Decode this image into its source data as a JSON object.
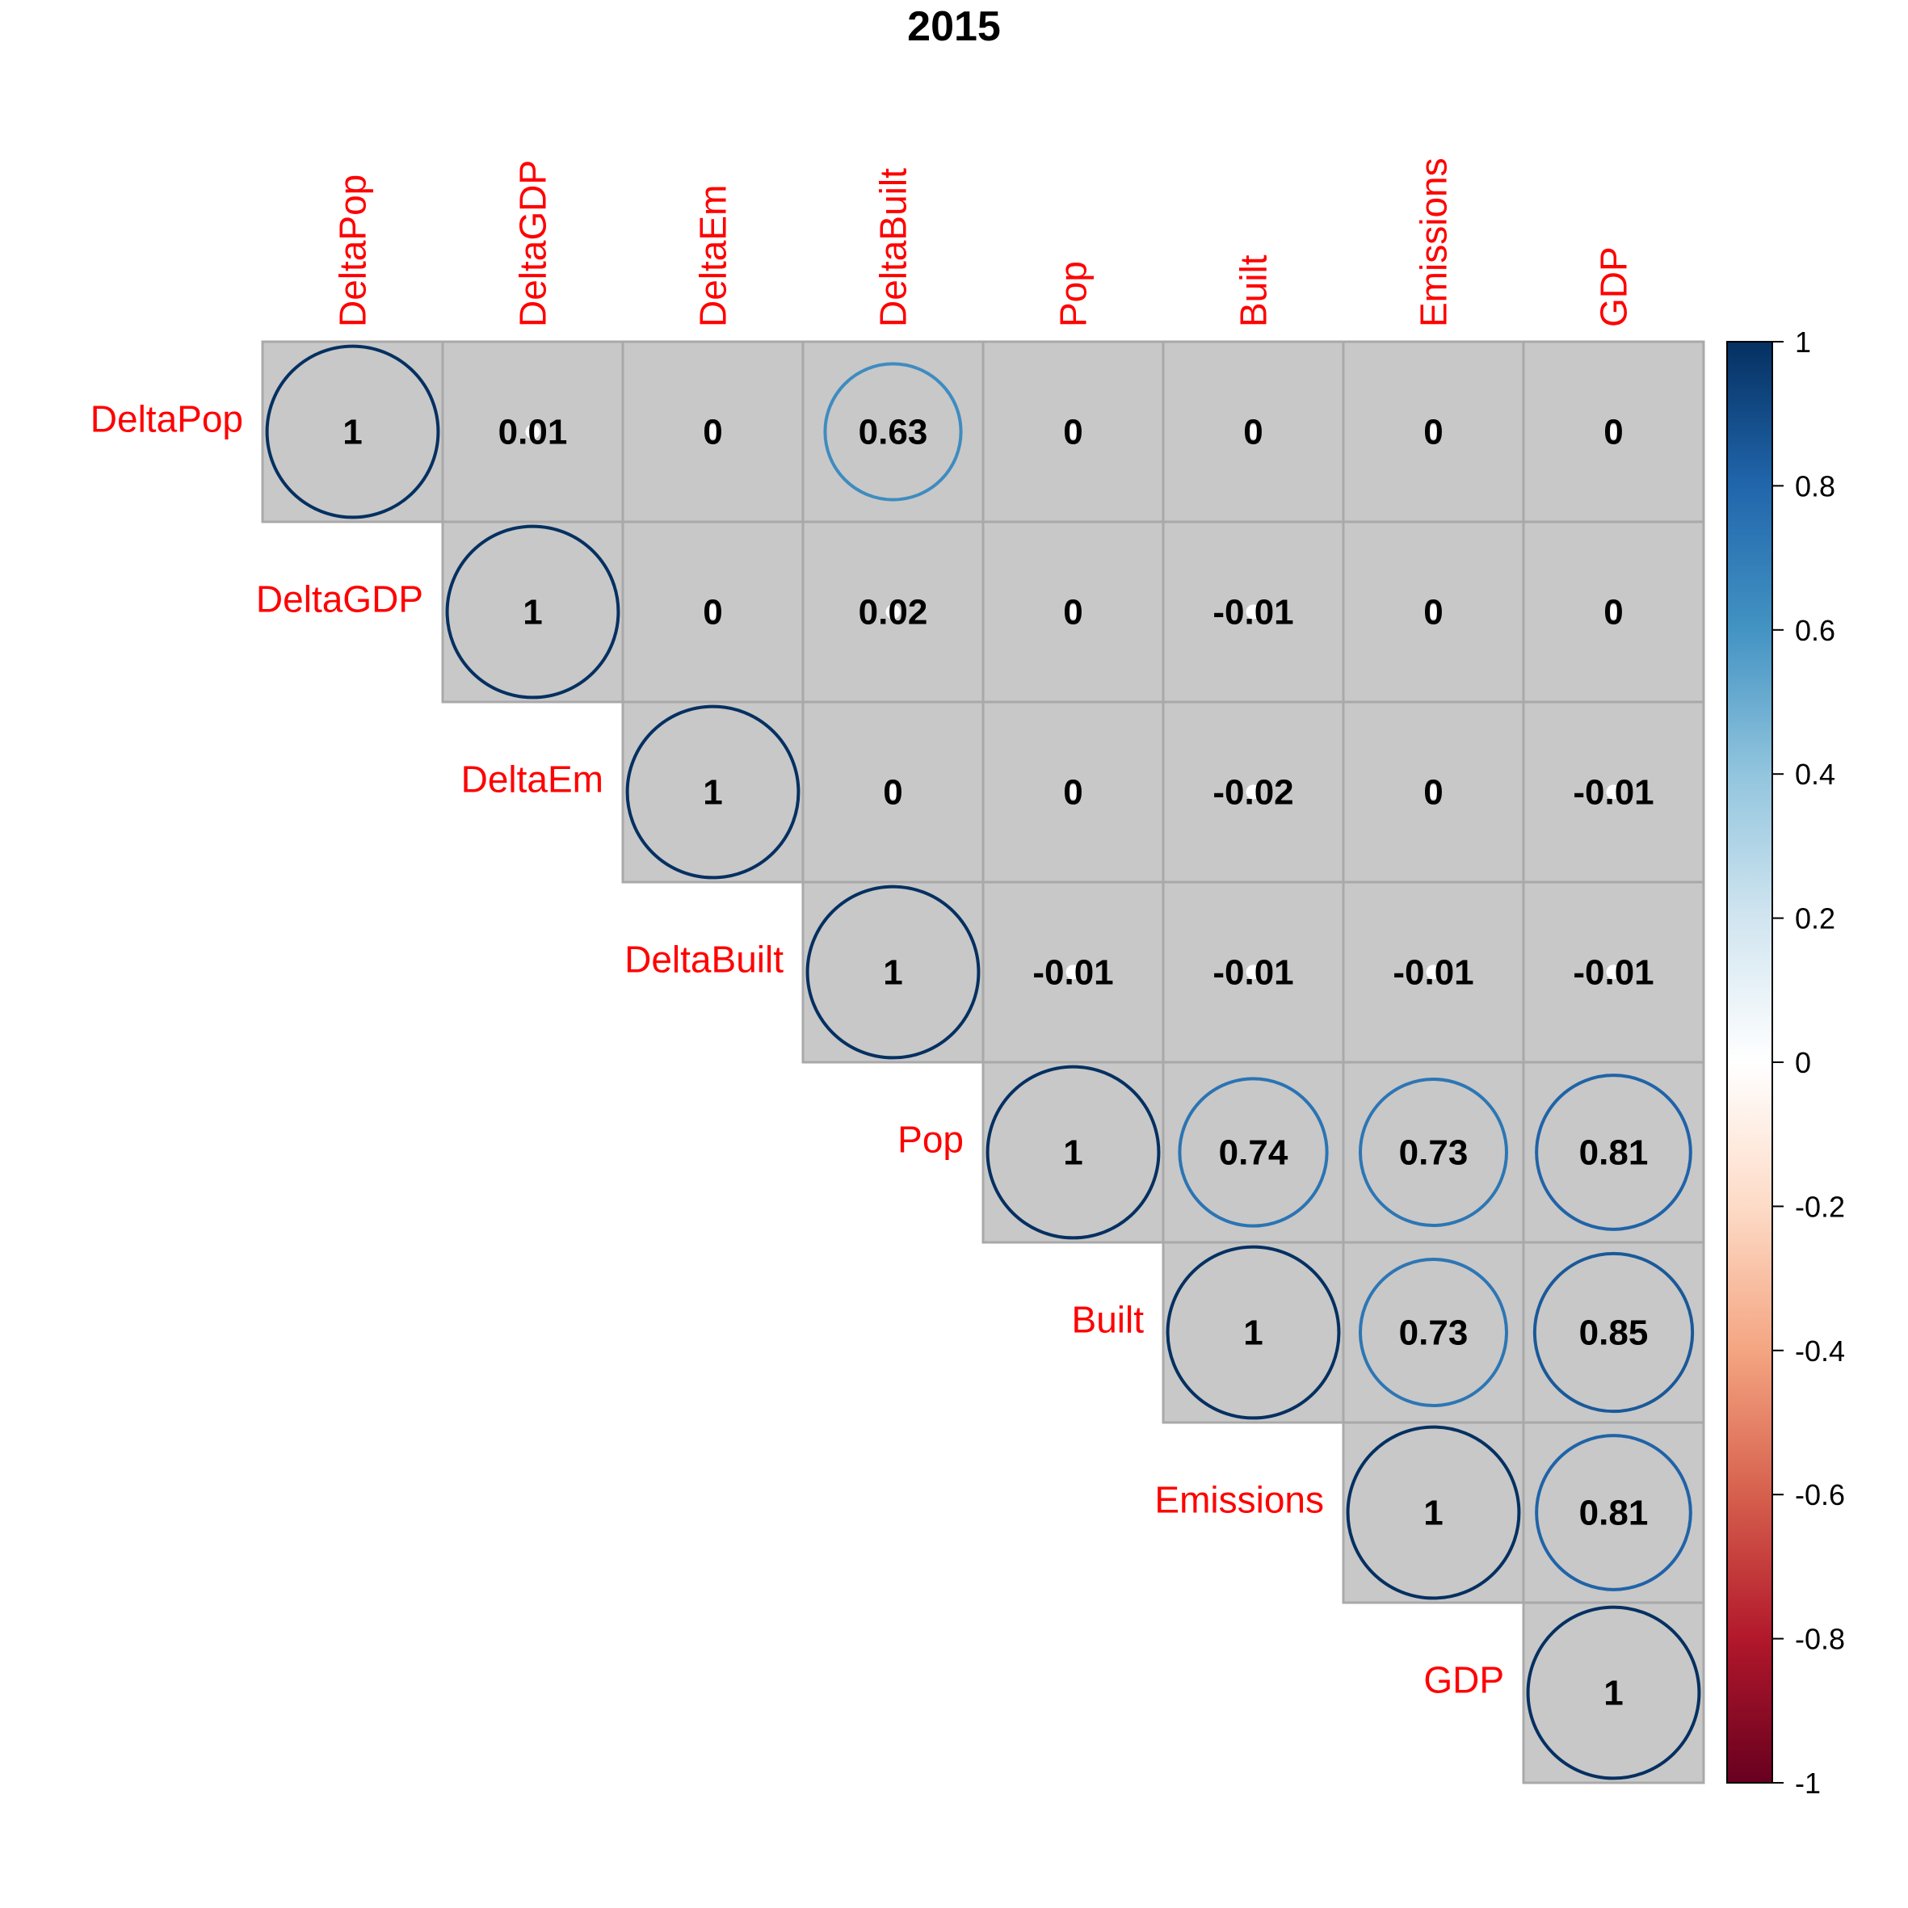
{
  "chart_data": {
    "type": "heatmap",
    "style": "circle correlation matrix, upper triangle",
    "title": "2015",
    "variables": [
      "DeltaPop",
      "DeltaGDP",
      "DeltaEm",
      "DeltaBuilt",
      "Pop",
      "Built",
      "Emissions",
      "GDP"
    ],
    "matrix": [
      [
        1,
        0.01,
        0,
        0.63,
        0,
        0,
        0,
        0
      ],
      [
        null,
        1,
        0,
        0.02,
        0,
        -0.01,
        0,
        0
      ],
      [
        null,
        null,
        1,
        0,
        0,
        -0.02,
        0,
        -0.01
      ],
      [
        null,
        null,
        null,
        1,
        -0.01,
        -0.01,
        -0.01,
        -0.01
      ],
      [
        null,
        null,
        null,
        null,
        1,
        0.74,
        0.73,
        0.81
      ],
      [
        null,
        null,
        null,
        null,
        null,
        1,
        0.73,
        0.85
      ],
      [
        null,
        null,
        null,
        null,
        null,
        null,
        1,
        0.81
      ],
      [
        null,
        null,
        null,
        null,
        null,
        null,
        null,
        1
      ]
    ],
    "value_labels": [
      [
        "1",
        "0.01",
        "0",
        "0.63",
        "0",
        "0",
        "0",
        "0"
      ],
      [
        "",
        "1",
        "0",
        "0.02",
        "0",
        "-0.01",
        "0",
        "0"
      ],
      [
        "",
        "",
        "1",
        "0",
        "0",
        "-0.02",
        "0",
        "-0.01"
      ],
      [
        "",
        "",
        "",
        "1",
        "-0.01",
        "-0.01",
        "-0.01",
        "-0.01"
      ],
      [
        "",
        "",
        "",
        "",
        "1",
        "0.74",
        "0.73",
        "0.81"
      ],
      [
        "",
        "",
        "",
        "",
        "",
        "1",
        "0.73",
        "0.85"
      ],
      [
        "",
        "",
        "",
        "",
        "",
        "",
        "1",
        "0.81"
      ],
      [
        "",
        "",
        "",
        "",
        "",
        "",
        "",
        "1"
      ]
    ],
    "colorbar": {
      "range": [
        -1,
        1
      ],
      "ticks": [
        "1",
        "0.8",
        "0.6",
        "0.4",
        "0.2",
        "0",
        "-0.2",
        "-0.4",
        "-0.6",
        "-0.8",
        "-1"
      ],
      "tick_values": [
        1,
        0.8,
        0.6,
        0.4,
        0.2,
        0,
        -0.2,
        -0.4,
        -0.6,
        -0.8,
        -1
      ],
      "colors": [
        "#67001F",
        "#B2182B",
        "#D6604D",
        "#F4A582",
        "#FDDBC7",
        "#FFFFFF",
        "#D1E5F0",
        "#92C5DE",
        "#4393C3",
        "#2166AC",
        "#053061"
      ]
    },
    "colors": {
      "label": "#ff0000",
      "cell_background": "#c8c8c8",
      "cell_border": "#a9a9a9"
    }
  }
}
